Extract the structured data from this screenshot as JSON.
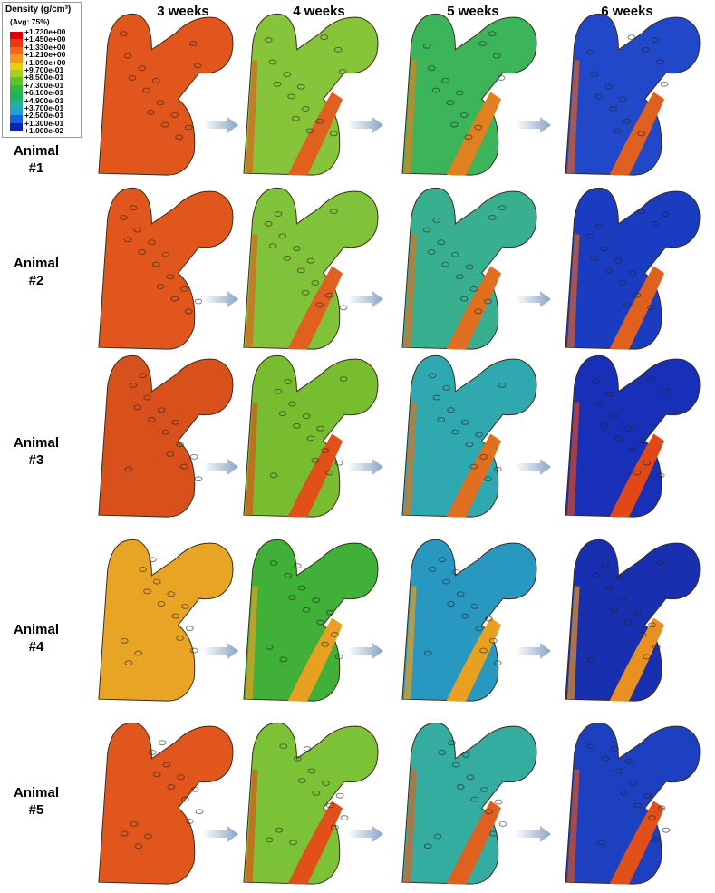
{
  "legend": {
    "title": "Density (g/cm³)",
    "avg": "(Avg: 75%)",
    "labels": [
      "+1.730e+00",
      "+1.450e+00",
      "+1.330e+00",
      "+1.210e+00",
      "+1.090e+00",
      "+9.700e-01",
      "+8.500e-01",
      "+7.300e-01",
      "+6.100e-01",
      "+4.900e-01",
      "+3.700e-01",
      "+2.500e-01",
      "+1.300e-01",
      "+1.000e-02"
    ],
    "colors": [
      "#e00000",
      "#e83a10",
      "#f06818",
      "#f09818",
      "#e8d010",
      "#a8d020",
      "#60c030",
      "#30b838",
      "#20b060",
      "#20b0a0",
      "#20a0d8",
      "#1860e0",
      "#1020b0"
    ]
  },
  "columns": [
    "3 weeks",
    "4 weeks",
    "5 weeks",
    "6 weeks"
  ],
  "rows": [
    {
      "label": "Animal #1",
      "cells": [
        {
          "fill": "#e0561c",
          "stripe": "#d84818"
        },
        {
          "fill": "#86c43a",
          "stripe": "#e06020"
        },
        {
          "fill": "#3cb45a",
          "stripe": "#e08020"
        },
        {
          "fill": "#2048c8",
          "stripe": "#e06020"
        }
      ]
    },
    {
      "label": "Animal #2",
      "cells": [
        {
          "fill": "#e0561c",
          "stripe": "#d84818"
        },
        {
          "fill": "#80c23a",
          "stripe": "#e06020"
        },
        {
          "fill": "#38b090",
          "stripe": "#e07020"
        },
        {
          "fill": "#1a3cc0",
          "stripe": "#e06020"
        }
      ]
    },
    {
      "label": "Animal #3",
      "cells": [
        {
          "fill": "#d8501c",
          "stripe": "#c84418"
        },
        {
          "fill": "#78bc30",
          "stripe": "#e05018"
        },
        {
          "fill": "#30a8b0",
          "stripe": "#e07020"
        },
        {
          "fill": "#1830b8",
          "stripe": "#e04818"
        }
      ]
    },
    {
      "label": "Animal #4",
      "cells": [
        {
          "fill": "#e8a424",
          "stripe": "#e09020"
        },
        {
          "fill": "#40b038",
          "stripe": "#e8a020"
        },
        {
          "fill": "#2898c0",
          "stripe": "#e8a020"
        },
        {
          "fill": "#1830b0",
          "stripe": "#e89020"
        }
      ]
    },
    {
      "label": "Animal #5",
      "cells": [
        {
          "fill": "#e0561c",
          "stripe": "#d84818"
        },
        {
          "fill": "#7cc236",
          "stripe": "#e05018"
        },
        {
          "fill": "#34aca0",
          "stripe": "#e06020"
        },
        {
          "fill": "#1c40c0",
          "stripe": "#e05018"
        }
      ]
    }
  ],
  "arrow_color": "#8aa4c8"
}
